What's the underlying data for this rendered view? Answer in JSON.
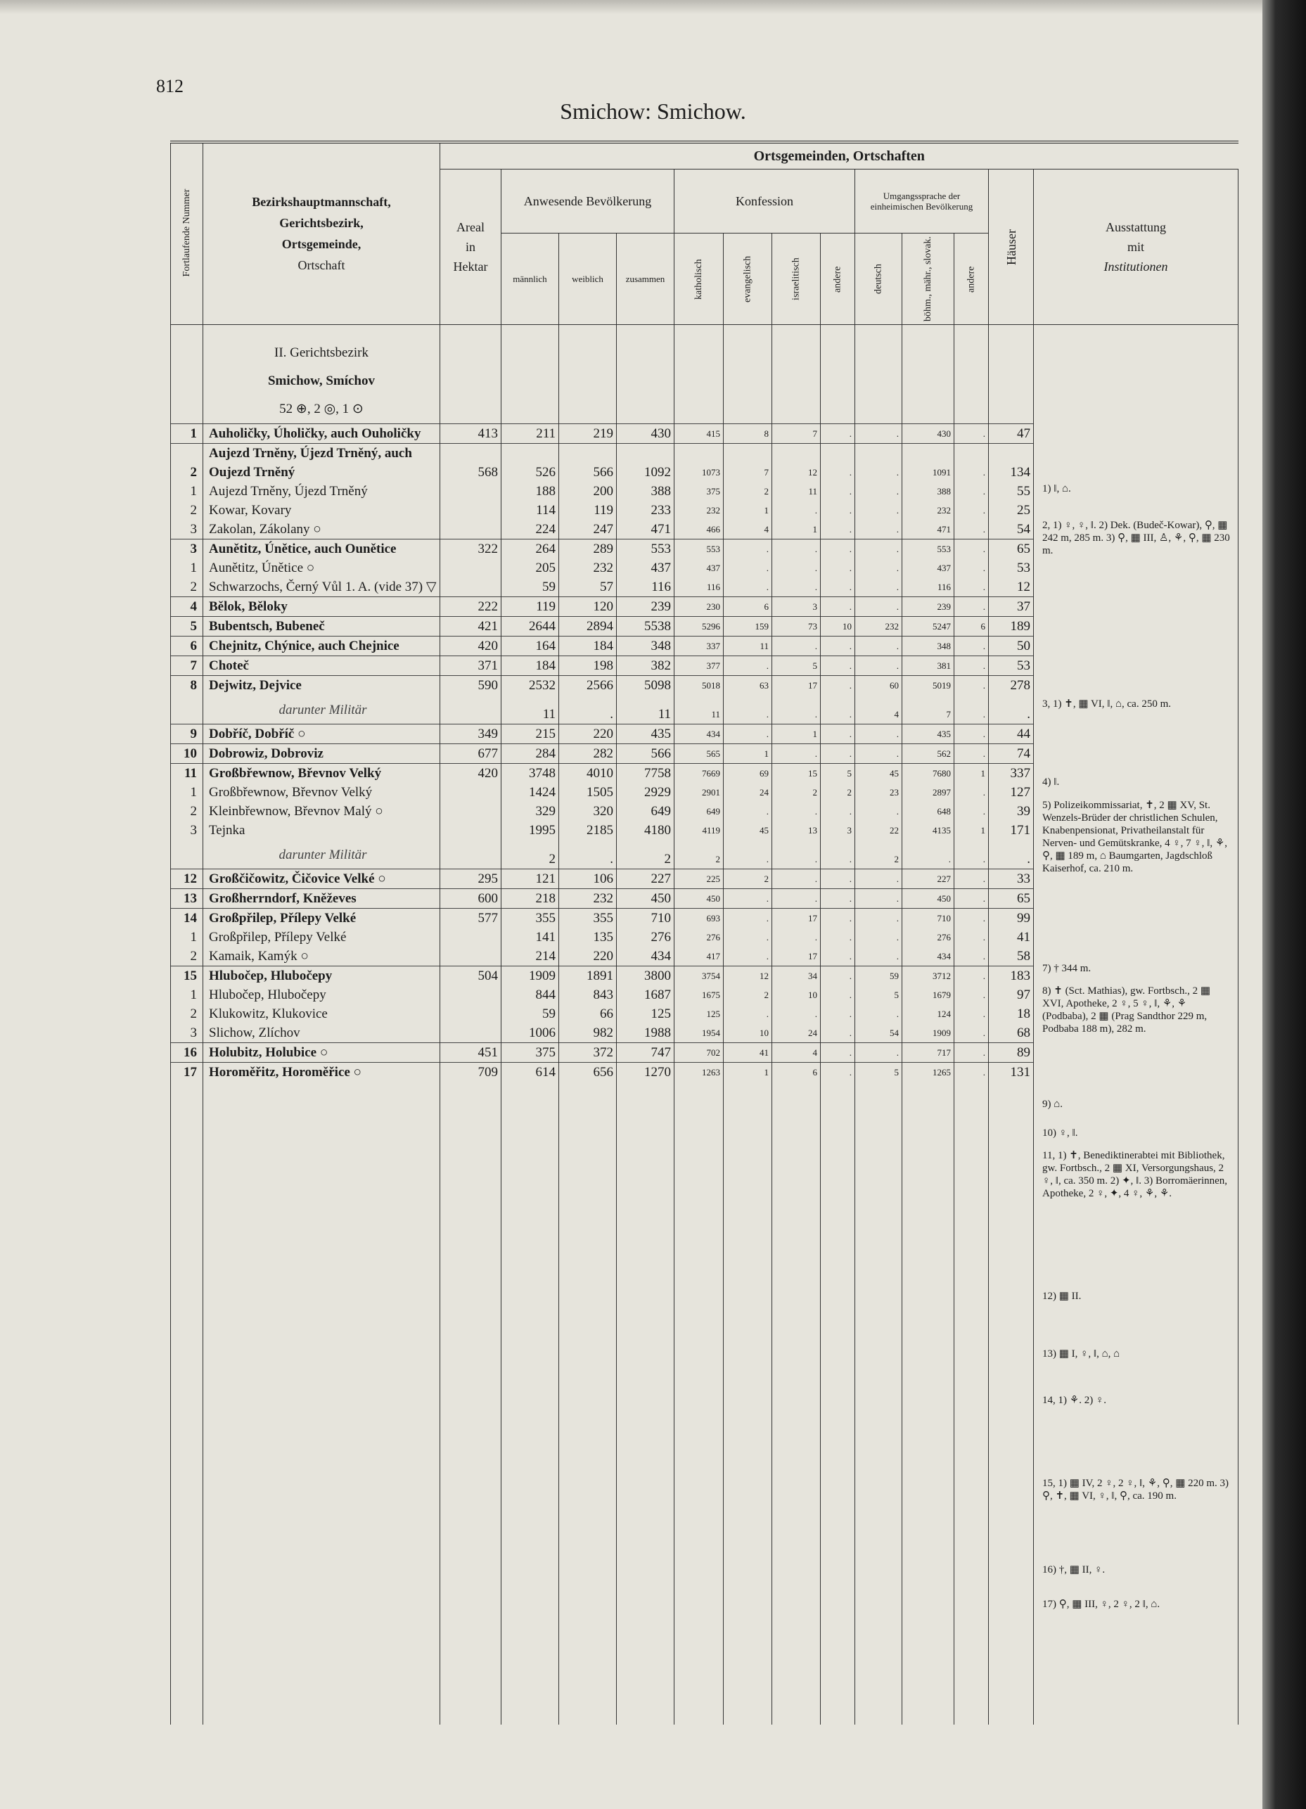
{
  "page_number": "812",
  "title": "Smichow: Smichow.",
  "header": {
    "nr": "Fortlaufende Nummer",
    "name": [
      "Bezirkshauptmannschaft,",
      "Gerichtsbezirk,",
      "Ortsgemeinde,",
      "Ortschaft"
    ],
    "group": "Ortsgemeinden, Ortschaften",
    "areal": [
      "Areal",
      "in",
      "Hektar"
    ],
    "population": "Anwesende Bevölkerung",
    "male": "männlich",
    "female": "weiblich",
    "total": "zusammen",
    "confession": "Konfession",
    "catholic": "katholisch",
    "protestant": "evangelisch",
    "jewish": "israelitisch",
    "other": "andere",
    "language": "Umgangssprache der einheimischen Bevölkerung",
    "german": "deutsch",
    "czech": "böhm., mähr., slovak.",
    "other_language": "andere",
    "houses": "Häuser",
    "amenities": [
      "Ausstattung",
      "mit",
      "Institutionen"
    ]
  },
  "section": [
    "II. Gerichtsbezirk",
    "Smichow, Smíchov",
    "52 ⊕, 2 ◎, 1 ⊙"
  ],
  "rows": [
    {
      "nr": 1,
      "name": "Auholičky, Úholičky, auch Ouholičky",
      "cells": [
        413,
        211,
        219,
        430,
        415,
        8,
        7,
        ".",
        ".",
        430,
        ".",
        47
      ]
    },
    {
      "nr": 2,
      "name": "Aujezd Trněny, Újezd Trněný, auch Oujezd Trněný",
      "cells": [
        568,
        526,
        566,
        1092,
        1073,
        7,
        12,
        ".",
        ".",
        1091,
        ".",
        134
      ]
    },
    {
      "nr": 1,
      "name": "Aujezd Trněny, Újezd Trněný",
      "cells": [
        null,
        188,
        200,
        388,
        375,
        2,
        11,
        ".",
        ".",
        388,
        ".",
        55
      ]
    },
    {
      "nr": 2,
      "name": "Kowar, Kovary",
      "cells": [
        null,
        114,
        119,
        233,
        232,
        1,
        ".",
        ".",
        ".",
        232,
        ".",
        25
      ]
    },
    {
      "nr": 3,
      "name": "Zakolan, Zákolany ○",
      "cells": [
        null,
        224,
        247,
        471,
        466,
        4,
        1,
        ".",
        ".",
        471,
        ".",
        54
      ]
    },
    {
      "nr": 3,
      "name": "Aunětitz, Únětice, auch Ounětice",
      "cells": [
        322,
        264,
        289,
        553,
        553,
        ".",
        ".",
        ".",
        ".",
        553,
        ".",
        65
      ]
    },
    {
      "nr": 1,
      "name": "Aunětitz, Únětice ○",
      "cells": [
        null,
        205,
        232,
        437,
        437,
        ".",
        ".",
        ".",
        ".",
        437,
        ".",
        53
      ]
    },
    {
      "nr": 2,
      "name": "Schwarzochs, Černý Vůl 1. A. (vide 37) ▽",
      "cells": [
        null,
        59,
        57,
        116,
        116,
        ".",
        ".",
        ".",
        ".",
        116,
        ".",
        12
      ]
    },
    {
      "nr": 4,
      "name": "Bělok, Běloky",
      "cells": [
        222,
        119,
        120,
        239,
        230,
        6,
        3,
        ".",
        ".",
        239,
        ".",
        37
      ]
    },
    {
      "nr": 5,
      "name": "Bubentsch, Bubeneč",
      "cells": [
        421,
        2644,
        2894,
        5538,
        5296,
        159,
        73,
        10,
        232,
        5247,
        6,
        189
      ]
    },
    {
      "nr": 6,
      "name": "Chejnitz, Chýnice, auch Chejnice",
      "cells": [
        420,
        164,
        184,
        348,
        337,
        11,
        ".",
        ".",
        ".",
        348,
        ".",
        50
      ]
    },
    {
      "nr": 7,
      "name": "Choteč",
      "cells": [
        371,
        184,
        198,
        382,
        377,
        ".",
        5,
        ".",
        ".",
        381,
        ".",
        53
      ]
    },
    {
      "nr": 8,
      "name": "Dejwitz, Dejvice",
      "cells": [
        590,
        2532,
        2566,
        5098,
        5018,
        63,
        17,
        ".",
        60,
        5019,
        ".",
        278
      ]
    },
    {
      "nr": null,
      "name": "darunter Militär",
      "cells": [
        null,
        11,
        ".",
        11,
        11,
        ".",
        ".",
        ".",
        4,
        7,
        ".",
        "."
      ]
    },
    {
      "nr": 9,
      "name": "Dobříč, Dobříč ○",
      "cells": [
        349,
        215,
        220,
        435,
        434,
        ".",
        1,
        ".",
        ".",
        435,
        ".",
        44
      ]
    },
    {
      "nr": 10,
      "name": "Dobrowiz, Dobroviz",
      "cells": [
        677,
        284,
        282,
        566,
        565,
        1,
        ".",
        ".",
        ".",
        562,
        ".",
        74
      ]
    },
    {
      "nr": 11,
      "name": "Großbřewnow, Břevnov Velký",
      "cells": [
        420,
        3748,
        4010,
        7758,
        7669,
        69,
        15,
        5,
        45,
        7680,
        1,
        337
      ]
    },
    {
      "nr": 1,
      "name": "Großbřewnow, Břevnov Velký",
      "cells": [
        null,
        1424,
        1505,
        2929,
        2901,
        24,
        2,
        2,
        23,
        2897,
        ".",
        127
      ]
    },
    {
      "nr": 2,
      "name": "Kleinbřewnow, Břevnov Malý ○",
      "cells": [
        null,
        329,
        320,
        649,
        649,
        ".",
        ".",
        ".",
        ".",
        648,
        ".",
        39
      ]
    },
    {
      "nr": 3,
      "name": "Tejnka",
      "cells": [
        null,
        1995,
        2185,
        4180,
        4119,
        45,
        13,
        3,
        22,
        4135,
        1,
        171
      ]
    },
    {
      "nr": null,
      "name": "darunter Militär",
      "cells": [
        null,
        2,
        ".",
        2,
        2,
        ".",
        ".",
        ".",
        2,
        ".",
        ".",
        "."
      ]
    },
    {
      "nr": 12,
      "name": "Großčičowitz, Čičovice Velké ○",
      "cells": [
        295,
        121,
        106,
        227,
        225,
        2,
        ".",
        ".",
        ".",
        227,
        ".",
        33
      ]
    },
    {
      "nr": 13,
      "name": "Großherrndorf, Kněževes",
      "cells": [
        600,
        218,
        232,
        450,
        450,
        ".",
        ".",
        ".",
        ".",
        450,
        ".",
        65
      ]
    },
    {
      "nr": 14,
      "name": "Großpřilep, Přílepy Velké",
      "cells": [
        577,
        355,
        355,
        710,
        693,
        ".",
        17,
        ".",
        ".",
        710,
        ".",
        99
      ]
    },
    {
      "nr": 1,
      "name": "Großpřilep, Přílepy Velké",
      "cells": [
        null,
        141,
        135,
        276,
        276,
        ".",
        ".",
        ".",
        ".",
        276,
        ".",
        41
      ]
    },
    {
      "nr": 2,
      "name": "Kamaik, Kamýk ○",
      "cells": [
        null,
        214,
        220,
        434,
        417,
        ".",
        17,
        ".",
        ".",
        434,
        ".",
        58
      ]
    },
    {
      "nr": 15,
      "name": "Hlubočep, Hlubočepy",
      "cells": [
        504,
        1909,
        1891,
        3800,
        3754,
        12,
        34,
        ".",
        59,
        3712,
        ".",
        183
      ]
    },
    {
      "nr": 1,
      "name": "Hlubočep, Hlubočepy",
      "cells": [
        null,
        844,
        843,
        1687,
        1675,
        2,
        10,
        ".",
        5,
        1679,
        ".",
        97
      ]
    },
    {
      "nr": 2,
      "name": "Klukowitz, Klukovice",
      "cells": [
        null,
        59,
        66,
        125,
        125,
        ".",
        ".",
        ".",
        ".",
        124,
        ".",
        18
      ]
    },
    {
      "nr": 3,
      "name": "Slichow, Zlíchov",
      "cells": [
        null,
        1006,
        982,
        1988,
        1954,
        10,
        24,
        ".",
        54,
        1909,
        ".",
        68
      ]
    },
    {
      "nr": 16,
      "name": "Holubitz, Holubice ○",
      "cells": [
        451,
        375,
        372,
        747,
        702,
        41,
        4,
        ".",
        ".",
        717,
        ".",
        89
      ]
    },
    {
      "nr": 17,
      "name": "Horoměřitz, Horoměřice ○",
      "cells": [
        709,
        614,
        656,
        1270,
        1263,
        1,
        6,
        ".",
        5,
        1265,
        ".",
        131
      ]
    }
  ],
  "notes": [
    "1) ‖, ⌂.",
    "2, 1) ♀, ♀, ‖. 2) Dek. (Budeč-Kowar), ⚲, ▦ 242 m, 285 m. 3) ⚲, ▦ III, ♙, ⚘, ⚲, ▦ 230 m.",
    "3, 1) ✝, ▦ VI, ‖, ⌂, ca. 250 m.",
    "4) ‖.",
    "5) Polizeikommissariat, ✝, 2 ▦ XV, St. Wenzels-Brüder der christlichen Schulen, Knabenpensionat, Privatheilanstalt für Nerven- und Gemütskranke, 4 ♀, 7 ♀, ‖, ⚘, ⚲, ▦ 189 m, ⌂ Baumgarten, Jagdschloß Kaiserhof, ca. 210 m.",
    "7) † 344 m.",
    "8) ✝ (Sct. Mathias), gw. Fortbsch., 2 ▦ XVI, Apotheke, 2 ♀, 5 ♀, ‖, ⚘, ⚘ (Podbaba), 2 ▦ (Prag Sandthor 229 m, Podbaba 188 m), 282 m.",
    "9) ⌂.",
    "10) ♀, ‖.",
    "11, 1) ✝, Benediktinerabtei mit Bibliothek, gw. Fortbsch., 2 ▦ XI, Versorgungshaus, 2 ♀, ‖, ca. 350 m. 2) ✦, ‖. 3) Borromäerinnen, Apotheke, 2 ♀, ✦, 4 ♀, ⚘, ⚘.",
    "12) ▦ II.",
    "13) ▦ I, ♀, ‖, ⌂, ⌂",
    "14, 1) ⚘. 2) ♀.",
    "15, 1) ▦ IV, 2 ♀, 2 ♀, ‖, ⚘, ⚲, ▦ 220 m. 3) ⚲, ✝, ▦ VI, ♀, ‖, ⚲, ca. 190 m.",
    "16) †, ▦ II, ♀.",
    "17) ⚲, ▦ III, ♀, 2 ♀, 2 ‖, ⌂."
  ]
}
